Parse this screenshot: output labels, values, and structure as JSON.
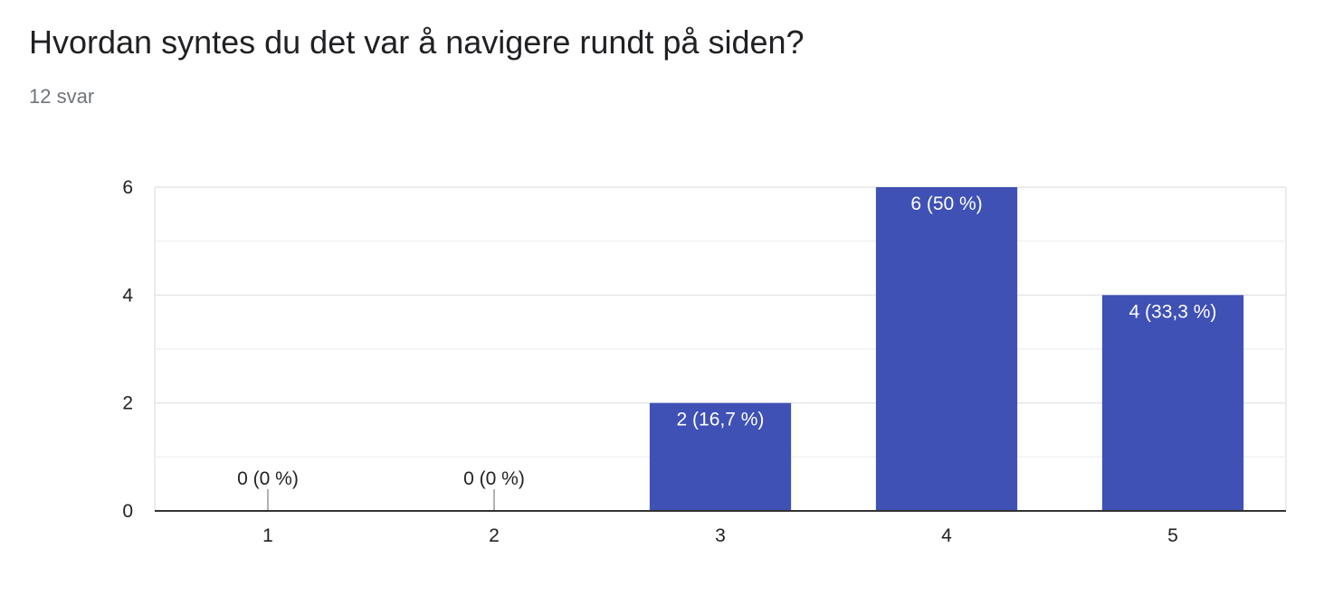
{
  "question": {
    "title": "Hvordan syntes du det var å navigere rundt på siden?",
    "response_count": "12 svar"
  },
  "colors": {
    "bar": "#3f51b5",
    "grid_major": "#e6e6e6",
    "grid_minor": "#f2f2f2",
    "baseline": "#333333",
    "zero_tick": "#999999"
  },
  "chart_data": {
    "type": "bar",
    "categories": [
      "1",
      "2",
      "3",
      "4",
      "5"
    ],
    "values": [
      0,
      0,
      2,
      6,
      4
    ],
    "data_labels": [
      "0 (0 %)",
      "0 (0 %)",
      "2 (16,7 %)",
      "6 (50 %)",
      "4 (33,3 %)"
    ],
    "title": "Hvordan syntes du det var å navigere rundt på siden?",
    "subtitle": "12 svar",
    "xlabel": "",
    "ylabel": "",
    "ylim": [
      0,
      6
    ],
    "yticks": [
      "0",
      "2",
      "4",
      "6"
    ],
    "grid": true,
    "legend": "none"
  }
}
